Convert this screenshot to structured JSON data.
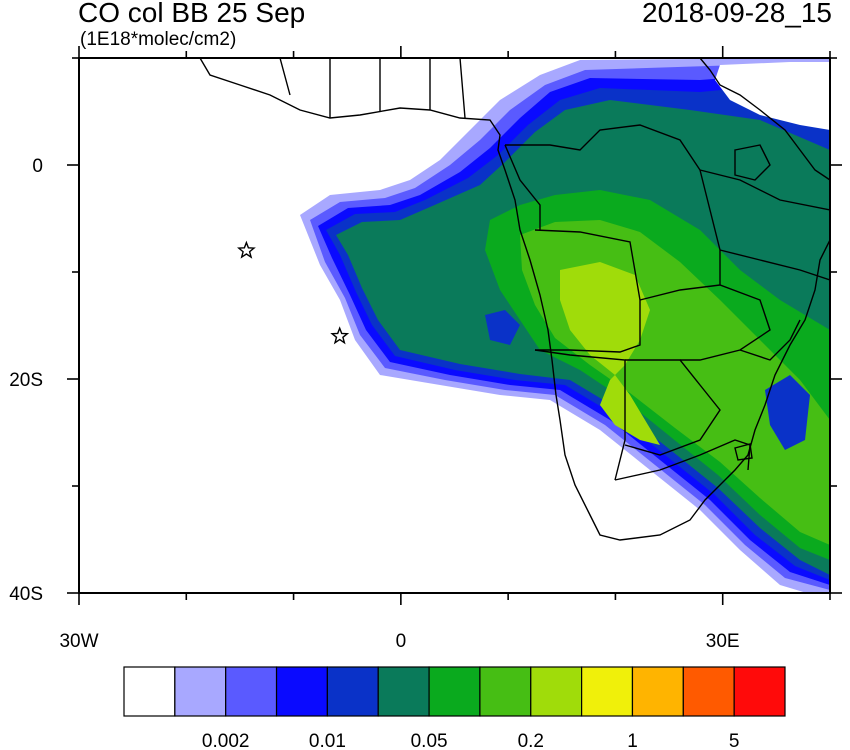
{
  "header": {
    "title": "CO col BB 25 Sep",
    "units": "(1E18*molec/cm2)",
    "datetime": "2018-09-28_15"
  },
  "axes": {
    "x_ticks": [
      {
        "lon": -30,
        "label": "30W"
      },
      {
        "lon": 0,
        "label": "0"
      },
      {
        "lon": 30,
        "label": "30E"
      }
    ],
    "y_ticks": [
      {
        "lat": 0,
        "label": "0"
      },
      {
        "lat": -20,
        "label": "20S"
      },
      {
        "lat": -40,
        "label": "40S"
      }
    ],
    "lon_range": [
      -30,
      40
    ],
    "lat_range": [
      -40,
      10
    ]
  },
  "colorbar": {
    "colors": [
      "#ffffff",
      "#a8a8ff",
      "#5a5aff",
      "#0a0aff",
      "#0a32c8",
      "#0a7a5a",
      "#0aaa1e",
      "#46be14",
      "#a0dc0a",
      "#f0f00a",
      "#ffb400",
      "#ff5a00",
      "#ff0a0a"
    ],
    "labels": [
      "0.002",
      "0.01",
      "0.05",
      "0.2",
      "1",
      "5"
    ]
  },
  "markers": [
    {
      "name": "star-1",
      "lon": -14.4,
      "lat": -8
    },
    {
      "name": "star-2",
      "lon": -5.7,
      "lat": -16
    }
  ]
}
